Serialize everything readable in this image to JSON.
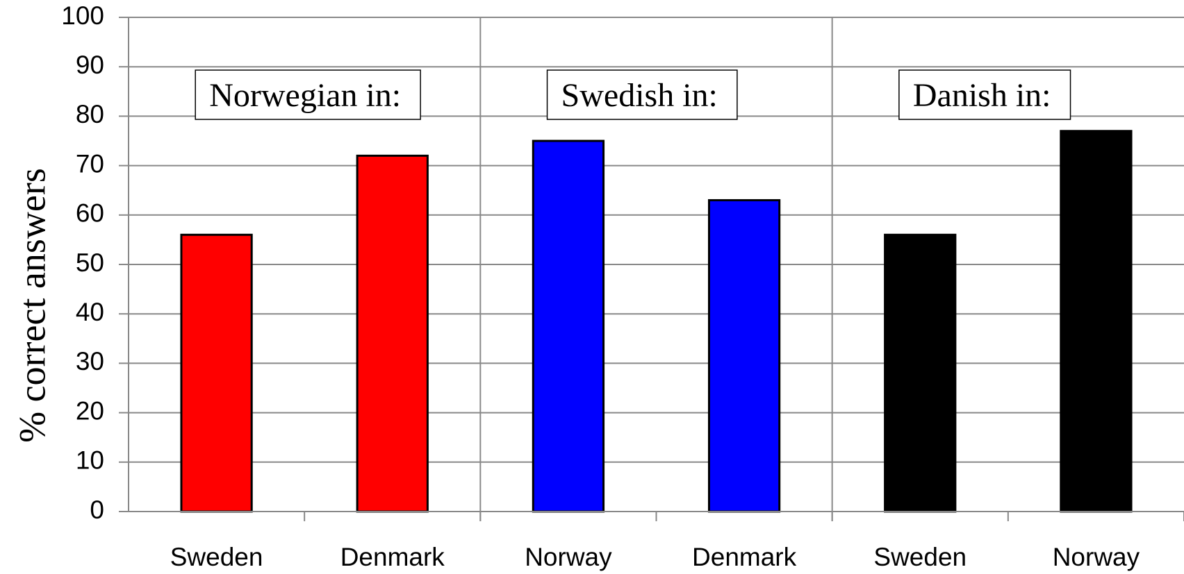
{
  "chart_data": {
    "type": "bar",
    "y_label": "% correct answers",
    "ylim": [
      0,
      100
    ],
    "yticks": [
      0,
      10,
      20,
      30,
      40,
      50,
      60,
      70,
      80,
      90,
      100
    ],
    "grid": true,
    "groups": [
      {
        "name": "Norwegian in:",
        "color": "#ff0000",
        "categories": [
          "Sweden",
          "Denmark"
        ],
        "values": [
          56,
          72
        ]
      },
      {
        "name": "Swedish in:",
        "color": "#0000ff",
        "categories": [
          "Norway",
          "Denmark"
        ],
        "values": [
          75,
          63
        ]
      },
      {
        "name": "Danish in:",
        "color": "#000000",
        "categories": [
          "Sweden",
          "Norway"
        ],
        "values": [
          56,
          77
        ]
      }
    ]
  }
}
